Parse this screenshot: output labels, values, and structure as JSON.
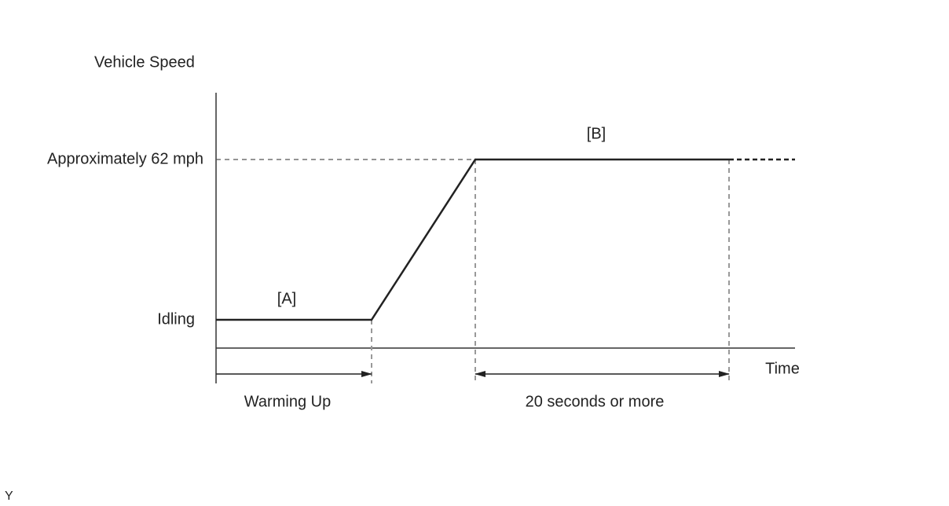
{
  "axis_labels": {
    "y": "Vehicle Speed",
    "x": "Time"
  },
  "levels": {
    "high": "Approximately 62 mph",
    "low": "Idling"
  },
  "phases": [
    "[A]",
    "[B]"
  ],
  "intervals": [
    "Warming Up",
    "20 seconds or more"
  ],
  "footer": "Y"
}
